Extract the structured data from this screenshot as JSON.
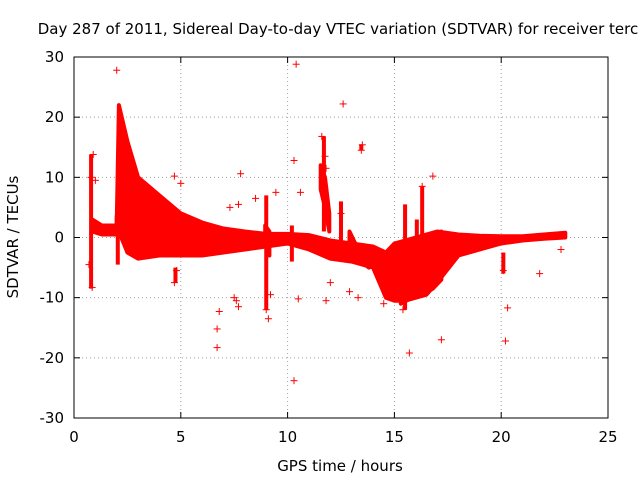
{
  "chart_data": {
    "type": "scatter",
    "title": "Day 287 of 2011, Sidereal Day-to-day VTEC variation (SDTVAR) for receiver terc",
    "xlabel": "GPS time / hours",
    "ylabel": "SDTVAR / TECUs",
    "xlim": [
      0,
      25
    ],
    "ylim": [
      -30,
      30
    ],
    "xticks": [
      0,
      5,
      10,
      15,
      20,
      25
    ],
    "yticks": [
      -30,
      -20,
      -10,
      0,
      10,
      20,
      30
    ],
    "grid": true,
    "marker": "+",
    "color": "#ff0000",
    "series": [
      {
        "name": "SDTVAR",
        "dense_bands": [
          {
            "x": [
              0.85,
              0.85,
              1.3,
              2.0,
              2.1,
              2.5,
              3.0,
              4.0,
              5.0,
              6.0,
              7.0,
              8.0,
              9.0,
              10.0,
              11.0,
              12.0,
              13.0,
              14.0,
              14.6,
              15.0,
              15.5,
              16.5,
              17.0,
              18.0,
              19.0,
              20.0,
              21.0,
              22.0,
              23.0,
              23.0
            ],
            "upper": [
              3.0,
              3.0,
              2.0,
              2.0,
              22.0,
              16.0,
              10.0,
              7.0,
              4.0,
              2.5,
              1.5,
              1.0,
              0.6,
              0.6,
              0.4,
              -0.5,
              -1.0,
              -1.5,
              -2.5,
              -1.0,
              -0.5,
              0.5,
              1.0,
              0.5,
              0.3,
              0.2,
              0.2,
              0.5,
              0.8,
              0.8
            ],
            "lower": [
              1.0,
              1.0,
              0.5,
              0.5,
              1.0,
              -2.5,
              -3.5,
              -3.0,
              -3.0,
              -3.0,
              -2.5,
              -2.0,
              -1.5,
              -1.0,
              -2.0,
              -3.5,
              -4.0,
              -5.0,
              -10.0,
              -10.5,
              -10.5,
              -9.5,
              -7.5,
              -3.0,
              -2.0,
              -1.0,
              -0.5,
              -0.2,
              0.0,
              0.0
            ]
          },
          {
            "x": [
              2.0,
              2.2,
              3.0,
              4.0,
              5.0,
              5.5
            ],
            "upper": [
              3.5,
              3.5,
              3.0,
              2.5,
              1.5,
              1.0
            ],
            "lower": [
              1.0,
              1.5,
              1.5,
              1.0,
              0.5,
              0.3
            ]
          },
          {
            "x": [
              15.3,
              15.8,
              16.3,
              16.8,
              17.2
            ],
            "upper": [
              -3.0,
              -2.0,
              -1.0,
              0.5,
              1.0
            ],
            "lower": [
              -11.0,
              -10.0,
              -9.5,
              -8.5,
              -7.0
            ]
          },
          {
            "x": [
              8.95,
              9.05,
              9.15
            ],
            "upper": [
              2.0,
              1.5,
              1.0
            ],
            "lower": [
              -0.5,
              -1.5,
              -3.0
            ]
          },
          {
            "x": [
              11.55,
              11.75,
              11.95
            ],
            "upper": [
              12.0,
              10.0,
              4.0
            ],
            "lower": [
              8.0,
              5.0,
              1.0
            ]
          },
          {
            "x": [
              12.9,
              13.3,
              13.8
            ],
            "upper": [
              1.0,
              -2.0,
              -3.0
            ],
            "lower": [
              -2.0,
              -3.5,
              -5.0
            ]
          }
        ],
        "columns": [
          {
            "x": 0.8,
            "ymin": -8.5,
            "ymax": 13.8
          },
          {
            "x": 2.05,
            "ymin": -4.5,
            "ymax": 8.0
          },
          {
            "x": 4.75,
            "ymin": -7.5,
            "ymax": -5.0
          },
          {
            "x": 9.0,
            "ymin": -12.0,
            "ymax": 7.0
          },
          {
            "x": 10.2,
            "ymin": -4.0,
            "ymax": 2.0
          },
          {
            "x": 11.7,
            "ymin": 1.0,
            "ymax": 16.8
          },
          {
            "x": 12.5,
            "ymin": -3.0,
            "ymax": 6.0
          },
          {
            "x": 13.45,
            "ymin": 14.5,
            "ymax": 15.5
          },
          {
            "x": 15.5,
            "ymin": -12.0,
            "ymax": 5.5
          },
          {
            "x": 16.05,
            "ymin": -9.0,
            "ymax": 3.0
          },
          {
            "x": 16.3,
            "ymin": 0.0,
            "ymax": 8.5
          },
          {
            "x": 20.1,
            "ymin": -6.0,
            "ymax": -2.5
          }
        ],
        "points": [
          [
            2.0,
            27.8
          ],
          [
            10.4,
            28.8
          ],
          [
            12.6,
            22.2
          ],
          [
            11.6,
            16.8
          ],
          [
            13.5,
            15.4
          ],
          [
            13.45,
            14.5
          ],
          [
            10.3,
            12.8
          ],
          [
            11.75,
            13.5
          ],
          [
            11.8,
            11.5
          ],
          [
            16.8,
            10.2
          ],
          [
            7.8,
            10.6
          ],
          [
            4.7,
            10.2
          ],
          [
            0.8,
            10.0
          ],
          [
            0.9,
            13.8
          ],
          [
            1.0,
            9.5
          ],
          [
            9.45,
            7.5
          ],
          [
            10.6,
            7.5
          ],
          [
            11.8,
            5.8
          ],
          [
            12.5,
            4.0
          ],
          [
            16.3,
            8.5
          ],
          [
            5.0,
            9.0
          ],
          [
            7.7,
            5.5
          ],
          [
            7.3,
            5.0
          ],
          [
            8.5,
            6.5
          ],
          [
            0.7,
            -4.5
          ],
          [
            0.85,
            -8.3
          ],
          [
            4.7,
            -7.5
          ],
          [
            4.8,
            -5.5
          ],
          [
            6.8,
            -12.3
          ],
          [
            7.5,
            -10.0
          ],
          [
            7.6,
            -10.5
          ],
          [
            7.7,
            -11.5
          ],
          [
            6.7,
            -15.2
          ],
          [
            6.7,
            -18.3
          ],
          [
            9.0,
            -12.0
          ],
          [
            9.1,
            -13.5
          ],
          [
            9.2,
            -9.5
          ],
          [
            10.5,
            -10.2
          ],
          [
            10.3,
            -23.8
          ],
          [
            11.8,
            -10.5
          ],
          [
            12.0,
            -7.5
          ],
          [
            12.9,
            -9.0
          ],
          [
            13.3,
            -10.0
          ],
          [
            14.5,
            -11.0
          ],
          [
            15.4,
            -12.0
          ],
          [
            15.7,
            -19.2
          ],
          [
            16.3,
            -9.0
          ],
          [
            17.2,
            -17.0
          ],
          [
            20.2,
            -17.2
          ],
          [
            20.3,
            -11.7
          ],
          [
            21.8,
            -6.0
          ],
          [
            22.8,
            -2.0
          ],
          [
            20.1,
            -5.5
          ]
        ]
      }
    ]
  }
}
